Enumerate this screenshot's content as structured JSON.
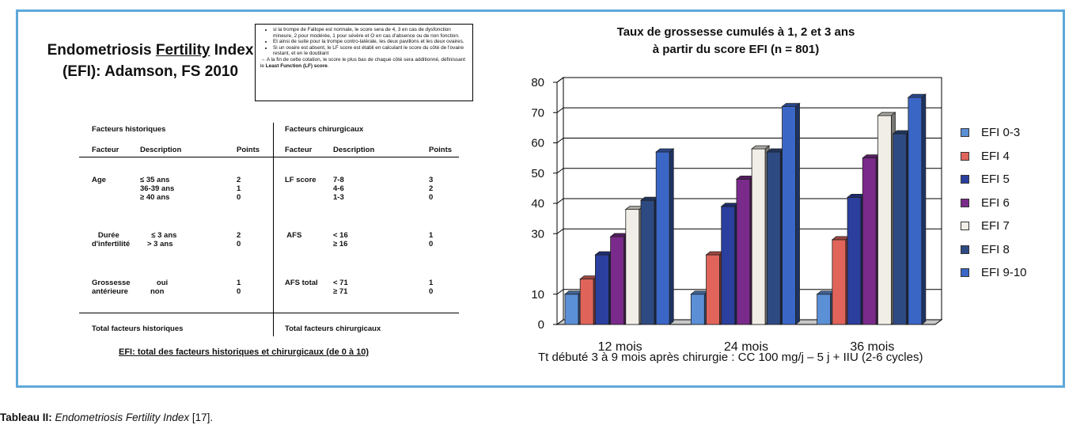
{
  "left_panel": {
    "title_line1_pre": "Endometriosis ",
    "title_line1_underlined": "Fertility",
    "title_line1_post": " Index",
    "title_line2": "(EFI): Adamson, FS 2010",
    "notes": [
      "si la trompe de Fallope est normale, le score sera de 4, 3 en cas de dysfonction mineure, 2 pour modérée, 1 pour sévère et O en cas d'absence ou de non fonction.",
      "Et ainsi de suite pour la trompe contro-latérale, les deux pavillons et les deux ovaires.",
      "Si un ovaire est absent, le LF score est établi en calculant le score du côté de l'ovaire restant, et en le doublant"
    ],
    "note_arrow_pre": "→ A la fin de cette cotation, le score le plus bas de chaque côté sera additionné, définissant le ",
    "note_arrow_bold": "Least Function (LF) score",
    "note_arrow_post": ".",
    "historic": {
      "section": "Facteurs historiques",
      "col_factor": "Facteur",
      "col_desc": "Description",
      "col_points": "Points",
      "rows": [
        {
          "factor": "Age",
          "desc": "≤ 35 ans\n36-39 ans\n≥ 40 ans",
          "points": "2\n1\n0"
        },
        {
          "factor": "   Durée\nd'infertilité",
          "desc": "  ≤ 3 ans\n> 3 ans",
          "points": "2\n0"
        },
        {
          "factor": "Grossesse\nantérieure",
          "desc": "   oui\nnon",
          "points": "1\n0"
        }
      ],
      "total": "Total facteurs historiques"
    },
    "surgical": {
      "section": "Facteurs chirurgicaux",
      "col_factor": "Facteur",
      "col_desc": "Description",
      "col_points": "Points",
      "rows": [
        {
          "factor": "LF score",
          "desc": "7-8\n4-6\n1-3",
          "points": "3\n2\n0"
        },
        {
          "factor": " AFS",
          "desc": "< 16\n≥ 16",
          "points": "1\n0"
        },
        {
          "factor": "AFS total",
          "desc": "< 71\n≥ 71",
          "points": "1\n0"
        }
      ],
      "total": "Total facteurs chirurgicaux"
    },
    "efi_total": "EFI: total des facteurs historiques et chirurgicaux (de 0 à 10)"
  },
  "chart_data": {
    "type": "bar",
    "title_line1": "Taux de grossesse cumulés à 1, 2 et 3 ans",
    "title_line2": "à partir du score EFI (n = 801)",
    "categories": [
      "12 mois",
      "24 mois",
      "36 mois"
    ],
    "ylim": [
      0,
      80
    ],
    "yticks": [
      0,
      10,
      30,
      40,
      50,
      60,
      70,
      80
    ],
    "grid": true,
    "legend_position": "right",
    "series": [
      {
        "name": "EFI 0-3",
        "color": "#5b8fd6",
        "values": [
          10,
          10,
          10
        ]
      },
      {
        "name": "EFI 4",
        "color": "#e0645a",
        "values": [
          15,
          23,
          28
        ]
      },
      {
        "name": "EFI 5",
        "color": "#2b3f9e",
        "values": [
          23,
          39,
          42
        ]
      },
      {
        "name": "EFI 6",
        "color": "#7a2a8a",
        "values": [
          29,
          48,
          55
        ]
      },
      {
        "name": "EFI 7",
        "color": "#f0eee6",
        "values": [
          38,
          58,
          69
        ]
      },
      {
        "name": "EFI 8",
        "color": "#2e4a82",
        "values": [
          41,
          57,
          63
        ]
      },
      {
        "name": "EFI 9-10",
        "color": "#3a66c6",
        "values": [
          57,
          72,
          75
        ]
      }
    ],
    "note": "Tt débuté 3 à 9 mois après chirurgie : CC 100 mg/j – 5 j + IIU (2-6 cycles)"
  },
  "caption": {
    "bold": "Tableau II:",
    "italic": "Endometriosis Fertility Index",
    "rest": " [17]."
  }
}
